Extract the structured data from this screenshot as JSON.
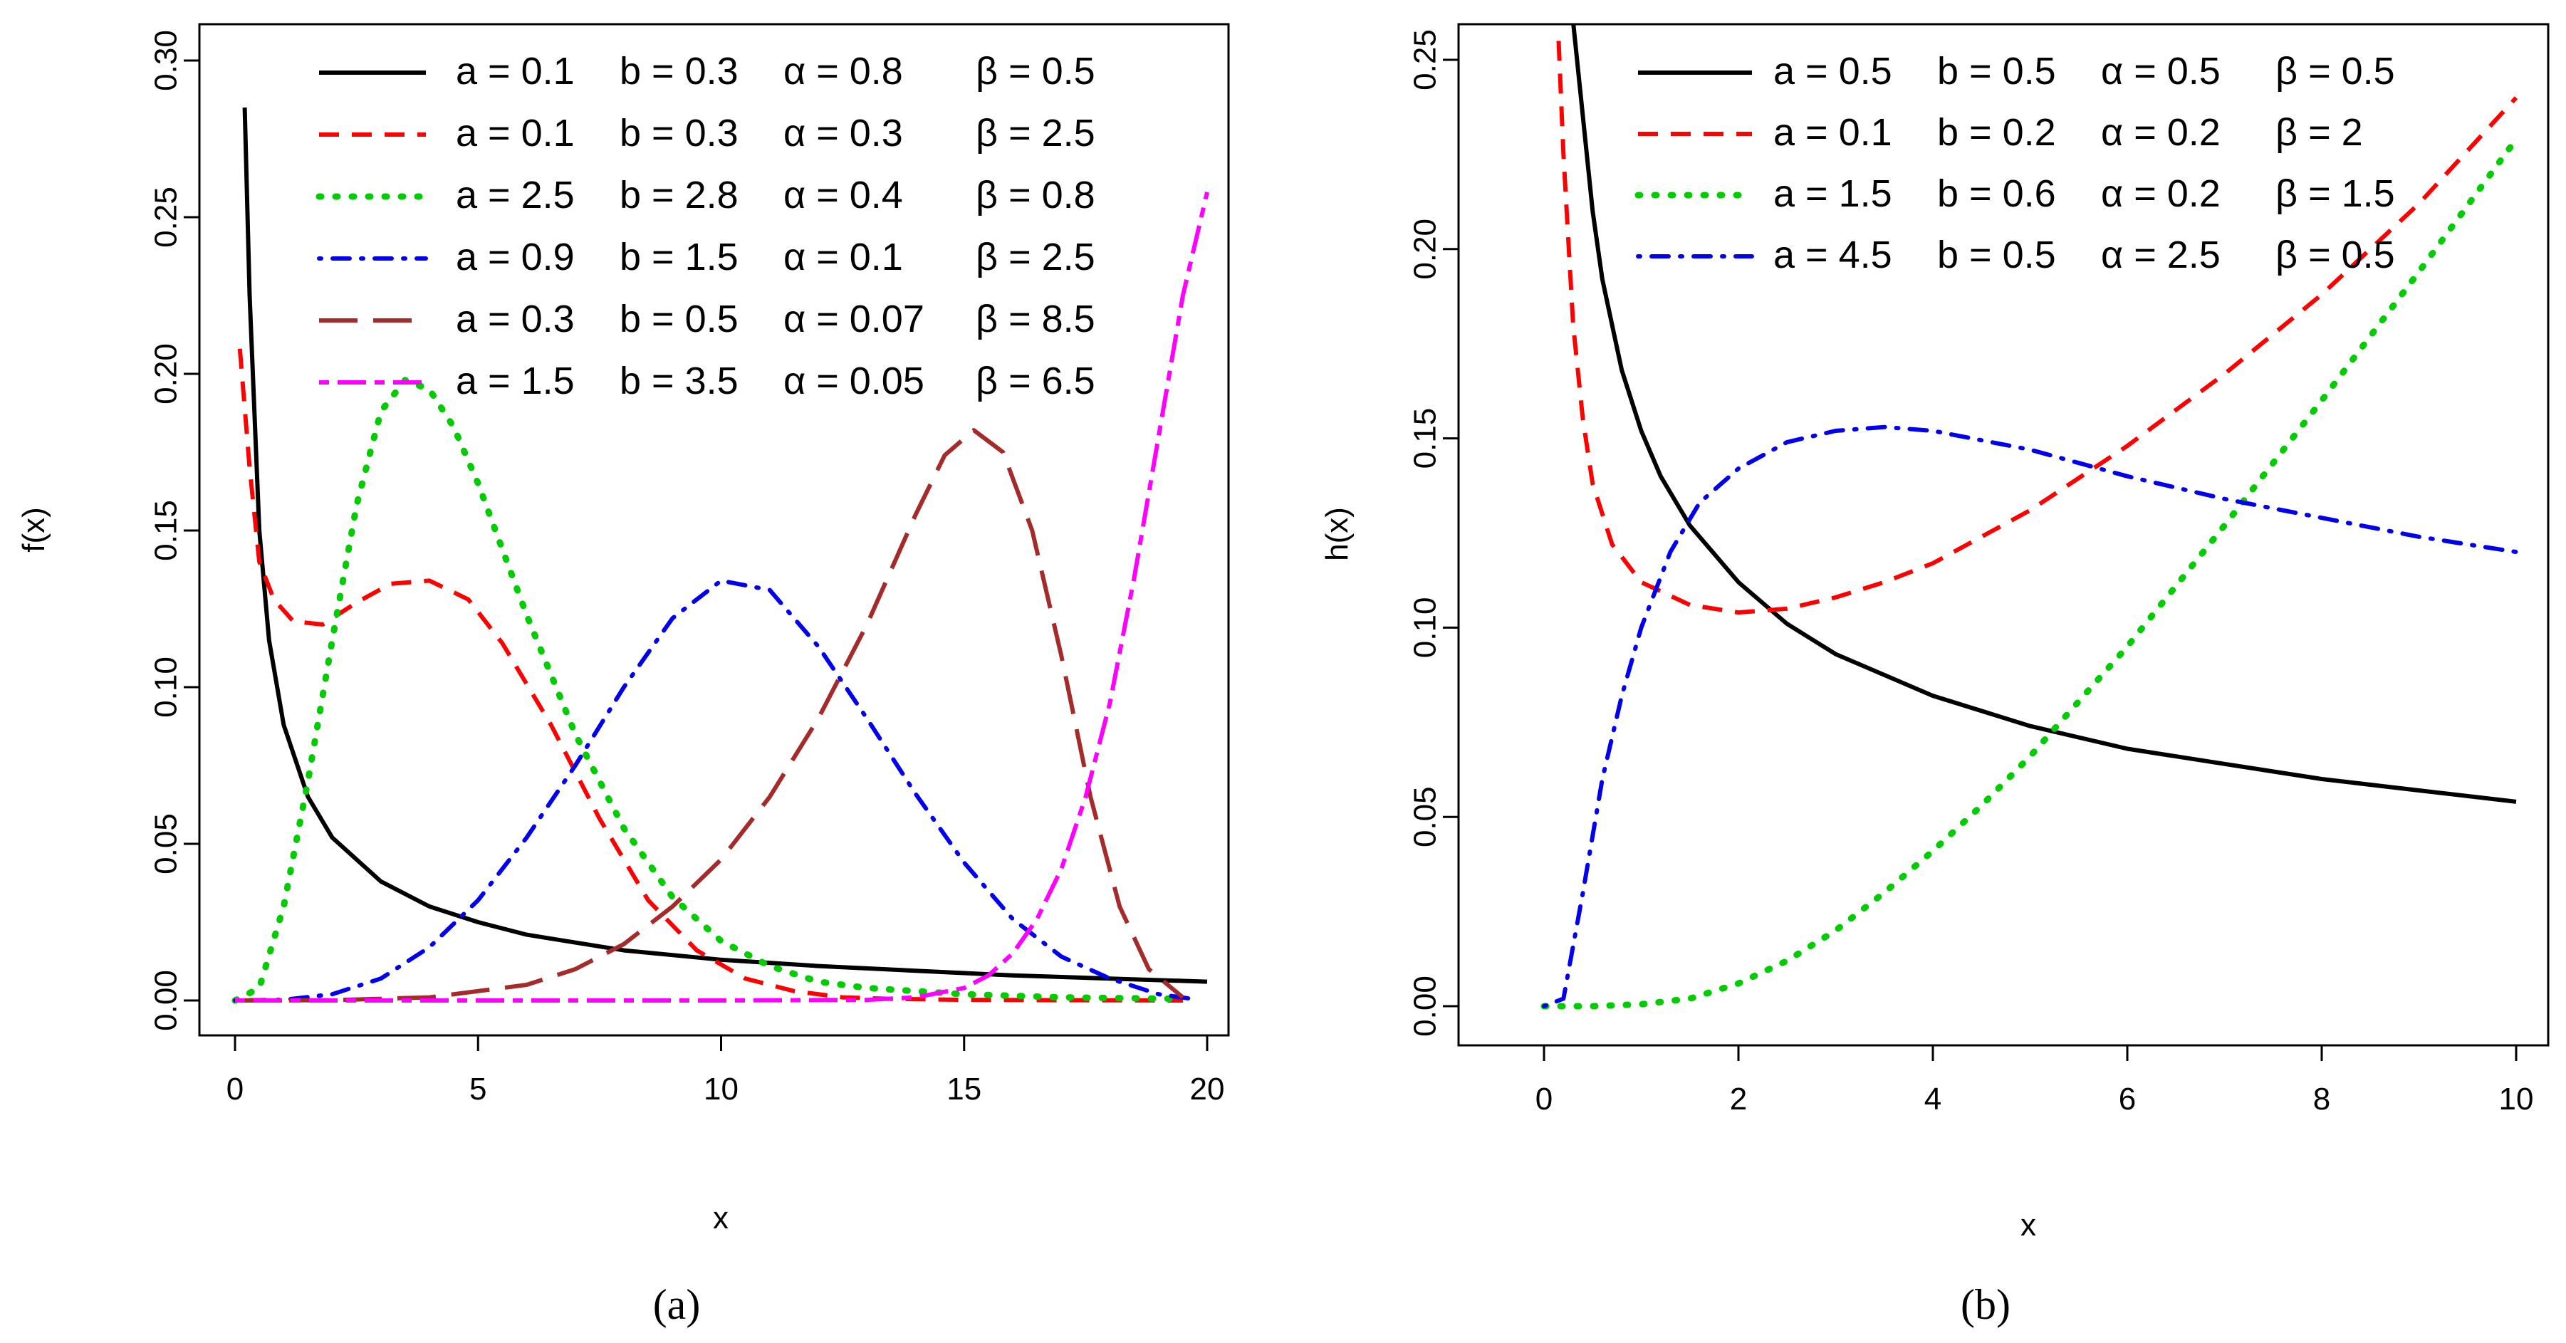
{
  "chart_data": [
    {
      "type": "line",
      "panel_label": "(a)",
      "xlabel": "x",
      "ylabel": "f(x)",
      "xlim": [
        0,
        20
      ],
      "ylim": [
        0,
        0.3
      ],
      "x_ticks": [
        "0",
        "5",
        "10",
        "15",
        "20"
      ],
      "y_ticks": [
        "0.00",
        "0.05",
        "0.10",
        "0.15",
        "0.20",
        "0.25",
        "0.30"
      ],
      "legend_position": "top",
      "series": [
        {
          "name": "a = 0.1   b = 0.3   α = 0.8   β = 0.5",
          "label_a": "a = 0.1",
          "label_b": "b = 0.3",
          "label_alpha": "α = 0.8",
          "label_beta": "β = 0.5",
          "color": "#000000",
          "style": "solid",
          "x": [
            0.2,
            0.3,
            0.5,
            0.7,
            1,
            1.5,
            2,
            3,
            4,
            5,
            6,
            8,
            10,
            12,
            14,
            16,
            18,
            20
          ],
          "y": [
            0.285,
            0.225,
            0.15,
            0.115,
            0.088,
            0.065,
            0.052,
            0.038,
            0.03,
            0.025,
            0.021,
            0.016,
            0.013,
            0.011,
            0.0095,
            0.008,
            0.007,
            0.006
          ]
        },
        {
          "name": "a = 0.1   b = 0.3   α = 0.3   β = 2.5",
          "label_a": "a = 0.1",
          "label_b": "b = 0.3",
          "label_alpha": "α = 0.3",
          "label_beta": "β = 2.5",
          "color": "#ff0000",
          "style": "dashed",
          "x": [
            0.1,
            0.3,
            0.5,
            0.8,
            1.2,
            1.8,
            2.5,
            3.2,
            4,
            4.8,
            5.5,
            6.5,
            7.5,
            8.5,
            9.5,
            10.5,
            11.5,
            12.5,
            13.5,
            15,
            17,
            19.5
          ],
          "y": [
            0.208,
            0.17,
            0.14,
            0.128,
            0.121,
            0.12,
            0.127,
            0.133,
            0.134,
            0.128,
            0.114,
            0.088,
            0.058,
            0.032,
            0.016,
            0.007,
            0.003,
            0.001,
            0.0005,
            0.0002,
            0.0001,
            0.0
          ]
        },
        {
          "name": "a = 2.5   b = 2.8   α = 0.4   β = 0.8",
          "label_a": "a = 2.5",
          "label_b": "b = 2.8",
          "label_alpha": "α = 0.4",
          "label_beta": "β = 0.8",
          "color": "#00cc00",
          "style": "dotted",
          "x": [
            0,
            0.5,
            1,
            1.5,
            2,
            2.5,
            3,
            3.5,
            4,
            4.5,
            5,
            6,
            7,
            8,
            9,
            10,
            11,
            12,
            13,
            15,
            17,
            19.5
          ],
          "y": [
            0,
            0.004,
            0.03,
            0.07,
            0.115,
            0.158,
            0.188,
            0.198,
            0.195,
            0.183,
            0.165,
            0.123,
            0.085,
            0.055,
            0.033,
            0.019,
            0.011,
            0.006,
            0.004,
            0.002,
            0.001,
            0.0005
          ]
        },
        {
          "name": "a = 0.9   b = 1.5   α = 0.1   β = 2.5",
          "label_a": "a = 0.9",
          "label_b": "b = 1.5",
          "label_alpha": "α = 0.1",
          "label_beta": "β = 2.5",
          "color": "#0000ee",
          "style": "dotdash",
          "x": [
            0,
            1,
            2,
            3,
            4,
            5,
            6,
            7,
            8,
            9,
            10,
            11,
            12,
            13,
            14,
            15,
            16,
            17,
            18,
            19,
            19.7
          ],
          "y": [
            0,
            0.0002,
            0.002,
            0.007,
            0.017,
            0.032,
            0.052,
            0.075,
            0.1,
            0.122,
            0.134,
            0.131,
            0.113,
            0.09,
            0.066,
            0.044,
            0.026,
            0.014,
            0.007,
            0.002,
            0.0005
          ]
        },
        {
          "name": "a = 0.3   b = 0.5   α = 0.07   β = 8.5",
          "label_a": "a = 0.3",
          "label_b": "b = 0.5",
          "label_alpha": "α = 0.07",
          "label_beta": "β = 8.5",
          "color": "#a52a2a",
          "style": "longdash",
          "x": [
            0,
            2,
            4,
            6,
            7,
            8,
            9,
            10,
            11,
            12,
            13,
            14,
            14.6,
            15.2,
            15.8,
            16.4,
            17,
            17.6,
            18.2,
            18.8,
            19.5
          ],
          "y": [
            0,
            0.0001,
            0.001,
            0.005,
            0.01,
            0.018,
            0.03,
            0.045,
            0.065,
            0.09,
            0.12,
            0.155,
            0.174,
            0.182,
            0.175,
            0.15,
            0.11,
            0.065,
            0.03,
            0.01,
            0.001
          ]
        },
        {
          "name": "a = 1.5   b = 3.5   α = 0.05   β = 6.5",
          "label_a": "a = 1.5",
          "label_b": "b = 3.5",
          "label_alpha": "α = 0.05",
          "label_beta": "β = 6.5",
          "color": "#ff00ff",
          "style": "twodash",
          "x": [
            0,
            5,
            10,
            13,
            14,
            15,
            15.5,
            16,
            16.5,
            17,
            17.5,
            18,
            18.5,
            19,
            19.5,
            20
          ],
          "y": [
            0,
            0,
            0,
            0.0002,
            0.001,
            0.004,
            0.008,
            0.015,
            0.026,
            0.042,
            0.065,
            0.095,
            0.135,
            0.18,
            0.225,
            0.258
          ]
        }
      ]
    },
    {
      "type": "line",
      "panel_label": "(b)",
      "xlabel": "x",
      "ylabel": "h(x)",
      "xlim": [
        0,
        10
      ],
      "ylim": [
        0,
        0.25
      ],
      "x_ticks": [
        "0",
        "2",
        "4",
        "6",
        "8",
        "10"
      ],
      "y_ticks": [
        "0.00",
        "0.05",
        "0.10",
        "0.15",
        "0.20",
        "0.25"
      ],
      "legend_position": "top",
      "series": [
        {
          "name": "a = 0.5   b = 0.5   α = 0.5   β = 0.5",
          "label_a": "a = 0.5",
          "label_b": "b = 0.5",
          "label_alpha": "α = 0.5",
          "label_beta": "β = 0.5",
          "color": "#000000",
          "style": "solid",
          "x": [
            0.3,
            0.4,
            0.5,
            0.6,
            0.8,
            1,
            1.2,
            1.5,
            2,
            2.5,
            3,
            4,
            5,
            6,
            7,
            8,
            9,
            10
          ],
          "y": [
            0.26,
            0.235,
            0.21,
            0.192,
            0.168,
            0.152,
            0.14,
            0.127,
            0.112,
            0.101,
            0.093,
            0.082,
            0.074,
            0.068,
            0.064,
            0.06,
            0.057,
            0.054
          ]
        },
        {
          "name": "a = 0.1   b = 0.2   α = 0.2   β = 2",
          "label_a": "a = 0.1",
          "label_b": "b = 0.2",
          "label_alpha": "α = 0.2",
          "label_beta": "β = 2",
          "color": "#ff0000",
          "style": "dashed",
          "x": [
            0.15,
            0.2,
            0.3,
            0.4,
            0.5,
            0.7,
            1,
            1.5,
            2,
            2.5,
            3,
            3.5,
            4,
            5,
            6,
            7,
            8,
            9,
            10
          ],
          "y": [
            0.255,
            0.225,
            0.18,
            0.155,
            0.138,
            0.122,
            0.112,
            0.106,
            0.104,
            0.105,
            0.108,
            0.112,
            0.117,
            0.131,
            0.148,
            0.167,
            0.188,
            0.212,
            0.24
          ]
        },
        {
          "name": "a = 1.5   b = 0.6   α = 0.2   β = 1.5",
          "label_a": "a = 1.5",
          "label_b": "b = 0.6",
          "label_alpha": "α = 0.2",
          "label_beta": "β = 1.5",
          "color": "#00cc00",
          "style": "dotted",
          "x": [
            0,
            0.5,
            1,
            1.5,
            2,
            2.5,
            3,
            3.5,
            4,
            4.5,
            5,
            6,
            7,
            8,
            9,
            10
          ],
          "y": [
            0,
            0,
            0.0005,
            0.002,
            0.006,
            0.012,
            0.02,
            0.03,
            0.041,
            0.053,
            0.066,
            0.095,
            0.127,
            0.16,
            0.194,
            0.229
          ]
        },
        {
          "name": "a = 4.5   b = 0.5   α = 2.5   β = 0.5",
          "label_a": "a = 4.5",
          "label_b": "b = 0.5",
          "label_alpha": "α = 2.5",
          "label_beta": "β = 0.5",
          "color": "#0000ee",
          "style": "dotdash",
          "x": [
            0,
            0.2,
            0.4,
            0.6,
            0.8,
            1,
            1.3,
            1.6,
            2,
            2.5,
            3,
            3.5,
            4,
            5,
            6,
            7,
            8,
            9,
            10
          ],
          "y": [
            0,
            0.002,
            0.03,
            0.06,
            0.082,
            0.1,
            0.12,
            0.133,
            0.142,
            0.149,
            0.152,
            0.153,
            0.152,
            0.147,
            0.14,
            0.134,
            0.129,
            0.124,
            0.12
          ]
        }
      ]
    }
  ]
}
